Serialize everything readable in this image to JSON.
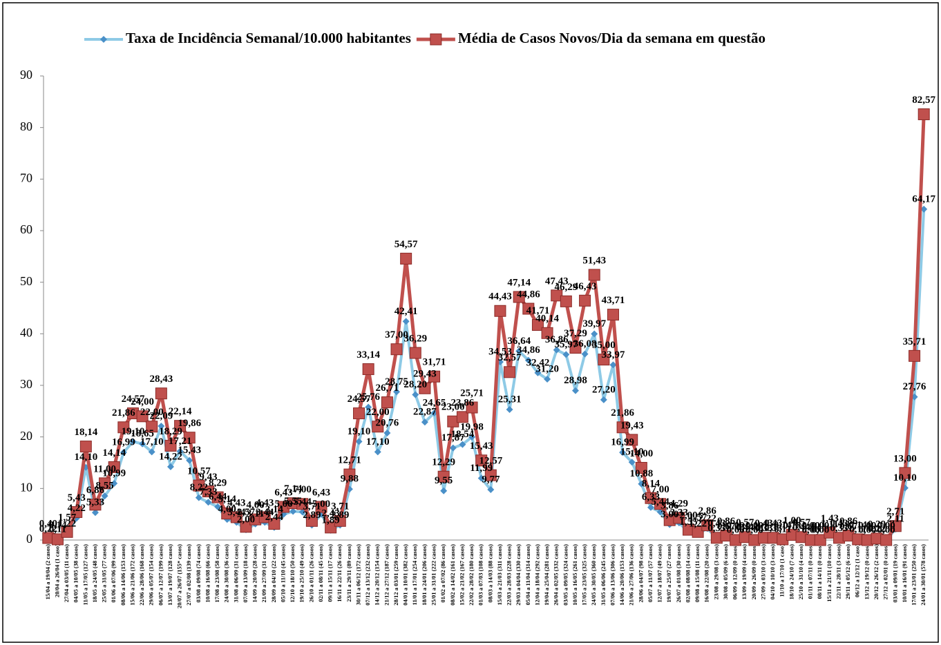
{
  "chart_data": {
    "type": "line",
    "categories": [
      "15/04 a 19/04 (2 casos)",
      "20/04 a 26/04 (1 caso)",
      "27/04 a 03/05 (11 casos)",
      "04/05 a 10/05 (38 casos)",
      "11/05 a 17/05 (127 casos)",
      "18/05 a 24/05 (48 casos)",
      "25/05 a 31/05 (77 casos)",
      "01/06 a 07/06 (99 casos)",
      "08/06 a 14/06 (153 casos)",
      "15/06 a 21/06 (172 casos)",
      "22/06 a 28/06 (168 casos)",
      "29/06 a 05/07 (154 casos)",
      "06/07 a 12/07 (199 casos)",
      "13/07 a 19/07 (128 casos)",
      "20/07 a 26/07 (155* casos)",
      "27/07 a 02/08 (139 casos)",
      "03/08 a 09/08 (74 casos)",
      "10/08 a 16/08 (66 casos)",
      "17/08 a 23/08 (58 casos)",
      "24/08 a 30/08 (36 casos)",
      "31/08 a 06/09 (31 casos)",
      "07/09 a 13/09 (18 casos)",
      "14/09 a 20/09 (28 casos)",
      "21/09 a 27/09 (31 casos)",
      "28/09 a 04/10 (22 casos)",
      "05/10 a 11/10 (45 casos)",
      "12/10 a 18/10 (50 casos)",
      "19/10 a 25/10 (49 casos)",
      "26/10 a 01/11 (26 casos)",
      "02/11 a 08/11 (45 casos)",
      "09/11 a 15/11 (17 casos)",
      "16/11 a 22/11 (26 casos)",
      "23/11 a 29/11 (89 casos)",
      "30/11 a 06/12 (172 casos)",
      "07/12 a 13/12 (232 casos)",
      "14/12 a 20/12 (154 casos)",
      "21/12 a 27/12 (187 casos)",
      "28/12 a 03/01 (259 casos)",
      "04/01 a 10/01 (382 casos)",
      "11/01 a 17/01 (254 casos)",
      "18/01 a 24/01 (206 casos)",
      "25/01 a 31/01 (222 casos)",
      "01/02 a 07/02 (86 casos)",
      "08/02 a 14/02 (161 casos)",
      "15/02 a 21/02 (167 casos)",
      "22/02 a 28/02 (180 casos)",
      "01/03 a 07/03 (108 casos)",
      "08/03 a 14/03 (88 casos)",
      "15/03 a 21/03 (311 casos)",
      "22/03 a 28/03 (228 casos)",
      "29/03 a 04/04 (330 casos)",
      "05/04 a 11/04 (314 casos)",
      "12/04 a 18/04 (292 casos)",
      "19/04 a 25/04 (281 casos)",
      "26/04 a 02/05 (332 casos)",
      "03/05 a 09/05 (324 casos)",
      "10/05 a 16/05 (261 casos)",
      "17/05 a 23/05 (325 casos)",
      "24/05 a 30/05 (360 casos)",
      "31/05 a 06/06 (245 casos)",
      "07/06 a 13/06 (306 casos)",
      "14/06 a 20/06 (153 casos)",
      "21/06 a 27/06 (136 casos)",
      "28/06 a 04/07 (98 casos)",
      "05/07 a 11/07 (57 casos)",
      "12/07 a 18/07 (49 casos)",
      "19/07 a 25/07 (27 casos)",
      "26/07 a 01/08 (30 casos)",
      "02/08 a 08/08 (14 casos)",
      "09/08 a 15/08 (11 casos)",
      "16/08 a 22/08 (20 casos)",
      "23/08 a 29/08 (3 casos)",
      "30/08 a 05/09 (6 casos)",
      "06/09 a 12/09 (0 casos)",
      "13/09 a 19/09 (4 casos)",
      "20/09 a 26/09 (0 casos)",
      "27/09 a 03/10 (3 casos)",
      "04/10 a 10/10 (3 casos)",
      "11/10 a 17/10 (1 caso)",
      "18/10 a 24/10 (7 casos)",
      "25/10 a 31/10 (4 casos)",
      "01/11 a 07/11 (0 casos)",
      "08/11 a 14/11 (0 casos)",
      "15/11 a 21/11 (10 casos)",
      "22/11 a 28/11 (3 casos)",
      "29/11 a 05/12 (6 casos)",
      "06/12 a 12/12 (1 caso)",
      "13/12 a 19/12 (0 casos)",
      "20/12 a 26/12 (2 casos)",
      "27/12 a 02/01 (0 casos)",
      "03/01 a 09/01 (19 casos)",
      "10/01 a 16/01 (91 casos)",
      "17/01 a 23/01 (250 casos)",
      "24/01 a 30/01 (578 casos)"
    ],
    "series": [
      {
        "name": "Taxa de Incidência Semanal/10.000 habitantes",
        "color": "#8ecae6",
        "marker_color": "#4a90c8",
        "marker": "diamond",
        "values": [
          0.22,
          0.11,
          1.22,
          4.22,
          14.1,
          5.33,
          8.55,
          10.99,
          16.99,
          19.1,
          18.65,
          17.1,
          22.09,
          14.22,
          17.21,
          15.43,
          8.22,
          7.33,
          6.44,
          4.0,
          3.44,
          2.0,
          3.11,
          3.44,
          2.44,
          5.0,
          5.55,
          5.44,
          2.89,
          5.0,
          1.89,
          2.89,
          9.88,
          19.1,
          25.76,
          17.1,
          20.76,
          28.75,
          42.41,
          28.2,
          22.87,
          24.65,
          9.55,
          17.87,
          18.54,
          19.98,
          11.99,
          9.77,
          34.53,
          25.31,
          36.64,
          34.86,
          32.42,
          31.2,
          36.86,
          35.97,
          28.98,
          36.08,
          39.97,
          27.2,
          33.97,
          16.99,
          15.1,
          10.88,
          6.33,
          5.44,
          3.0,
          3.33,
          1.55,
          1.22,
          2.22,
          0.33,
          0.67,
          0,
          0.44,
          0,
          0.33,
          0.33,
          0.11,
          0.78,
          0.44,
          0,
          0,
          1.11,
          0.33,
          0.67,
          0.11,
          0,
          0.22,
          0,
          2.11,
          10.1,
          27.76,
          64.17
        ],
        "value_labels": [
          "0,22",
          "0,11",
          "1,22",
          "4,22",
          "14,10",
          "5,33",
          "8,55",
          "10,99",
          "16,99",
          "19,10",
          "18,65",
          "17,10",
          "22,09",
          "14,22",
          "17,21",
          "15,43",
          "8,22",
          "7,33",
          "6,44",
          "4,00",
          "3,44",
          "2,00",
          "3,11",
          "3,44",
          "2,44",
          "5,00",
          "5,55",
          "5,44",
          "2,89",
          "5,00",
          "1,89",
          "2,89",
          "9,88",
          "19,10",
          "25,76",
          "17,10",
          "20,76",
          "28,75",
          "42,41",
          "28,20",
          "22,87",
          "24,65",
          "9,55",
          "17,87",
          "18,54",
          "19,98",
          "11,99",
          "9,77",
          "34,53",
          "25,31",
          "36,64",
          "34,86",
          "32,42",
          "31,20",
          "36,86",
          "35,97",
          "28,98",
          "36,08",
          "39,97",
          "27,20",
          "33,97",
          "16,99",
          "15,10",
          "10,88",
          "6,33",
          "5,44",
          "3,00",
          "3,33",
          "1,55",
          "1,22",
          "2,22",
          "0,33",
          "0,67",
          "0,00",
          "0,44",
          "0,00",
          "0,33",
          "0,33",
          "0,11",
          "0,78",
          "0,44",
          "0,00",
          "0,00",
          "1,11",
          "0,33",
          "0,67",
          "0,11",
          "0,00",
          "0,22",
          "0,00",
          "2,11",
          "10,10",
          "27,76",
          "64,17"
        ]
      },
      {
        "name": "Média de Casos Novos/Dia da semana em questão",
        "color": "#c0504d",
        "marker_color": "#c0504d",
        "marker": "square",
        "values": [
          0.4,
          0.14,
          1.57,
          5.43,
          18.14,
          6.86,
          11.0,
          14.14,
          21.86,
          24.57,
          24.0,
          22.0,
          28.43,
          18.29,
          22.14,
          19.86,
          10.57,
          9.43,
          8.29,
          5.14,
          4.43,
          2.57,
          4.0,
          4.43,
          3.14,
          6.43,
          7.14,
          7.0,
          3.71,
          6.43,
          2.43,
          3.71,
          12.71,
          24.57,
          33.14,
          22.0,
          26.71,
          37.0,
          54.57,
          36.29,
          29.43,
          31.71,
          12.29,
          23.0,
          23.86,
          25.71,
          15.43,
          12.57,
          44.43,
          32.57,
          47.14,
          44.86,
          41.71,
          40.14,
          47.43,
          46.29,
          37.29,
          46.43,
          51.43,
          35.0,
          43.71,
          21.86,
          19.43,
          14.0,
          8.14,
          7.0,
          3.86,
          4.29,
          2.0,
          1.57,
          2.86,
          0.43,
          0.86,
          0,
          0.57,
          0,
          0.43,
          0.43,
          0.14,
          1.0,
          0.57,
          0,
          0,
          1.43,
          0.43,
          0.86,
          0.14,
          0,
          0.29,
          0,
          2.71,
          13.0,
          35.71,
          82.57
        ],
        "value_labels": [
          "0,40",
          "0,14",
          "1,57",
          "5,43",
          "18,14",
          "6,86",
          "11,00",
          "14,14",
          "21,86",
          "24,57",
          "24,00",
          "22,00",
          "28,43",
          "18,29",
          "22,14",
          "19,86",
          "10,57",
          "9,43",
          "8,29",
          "5,14",
          "4,43",
          "2,57",
          "4,00",
          "4,43",
          "3,14",
          "6,43",
          "7,14",
          "7,00",
          "3,71",
          "6,43",
          "2,43",
          "3,71",
          "12,71",
          "24,57",
          "33,14",
          "22,00",
          "26,71",
          "37,00",
          "54,57",
          "36,29",
          "29,43",
          "31,71",
          "12,29",
          "23,00",
          "23,86",
          "25,71",
          "15,43",
          "12,57",
          "44,43",
          "32,57",
          "47,14",
          "44,86",
          "41,71",
          "40,14",
          "47,43",
          "46,29",
          "37,29",
          "46,43",
          "51,43",
          "35,00",
          "43,71",
          "21,86",
          "19,43",
          "14,00",
          "8,14",
          "7,00",
          "3,86",
          "4,29",
          "2,00",
          "1,57",
          "2,86",
          "0,43",
          "0,86",
          "0,00",
          "0,57",
          "0,00",
          "0,43",
          "0,43",
          "0,14",
          "1,00",
          "0,57",
          "0,00",
          "0,00",
          "1,43",
          "0,43",
          "0,86",
          "0,14",
          "0,00",
          "0,29",
          "0,00",
          "2,71",
          "13,00",
          "35,71",
          "82,57"
        ]
      }
    ],
    "ylim": [
      0,
      90
    ],
    "yticks": [
      0,
      10,
      20,
      30,
      40,
      50,
      60,
      70,
      80,
      90
    ],
    "grid": false,
    "legend": "top"
  }
}
